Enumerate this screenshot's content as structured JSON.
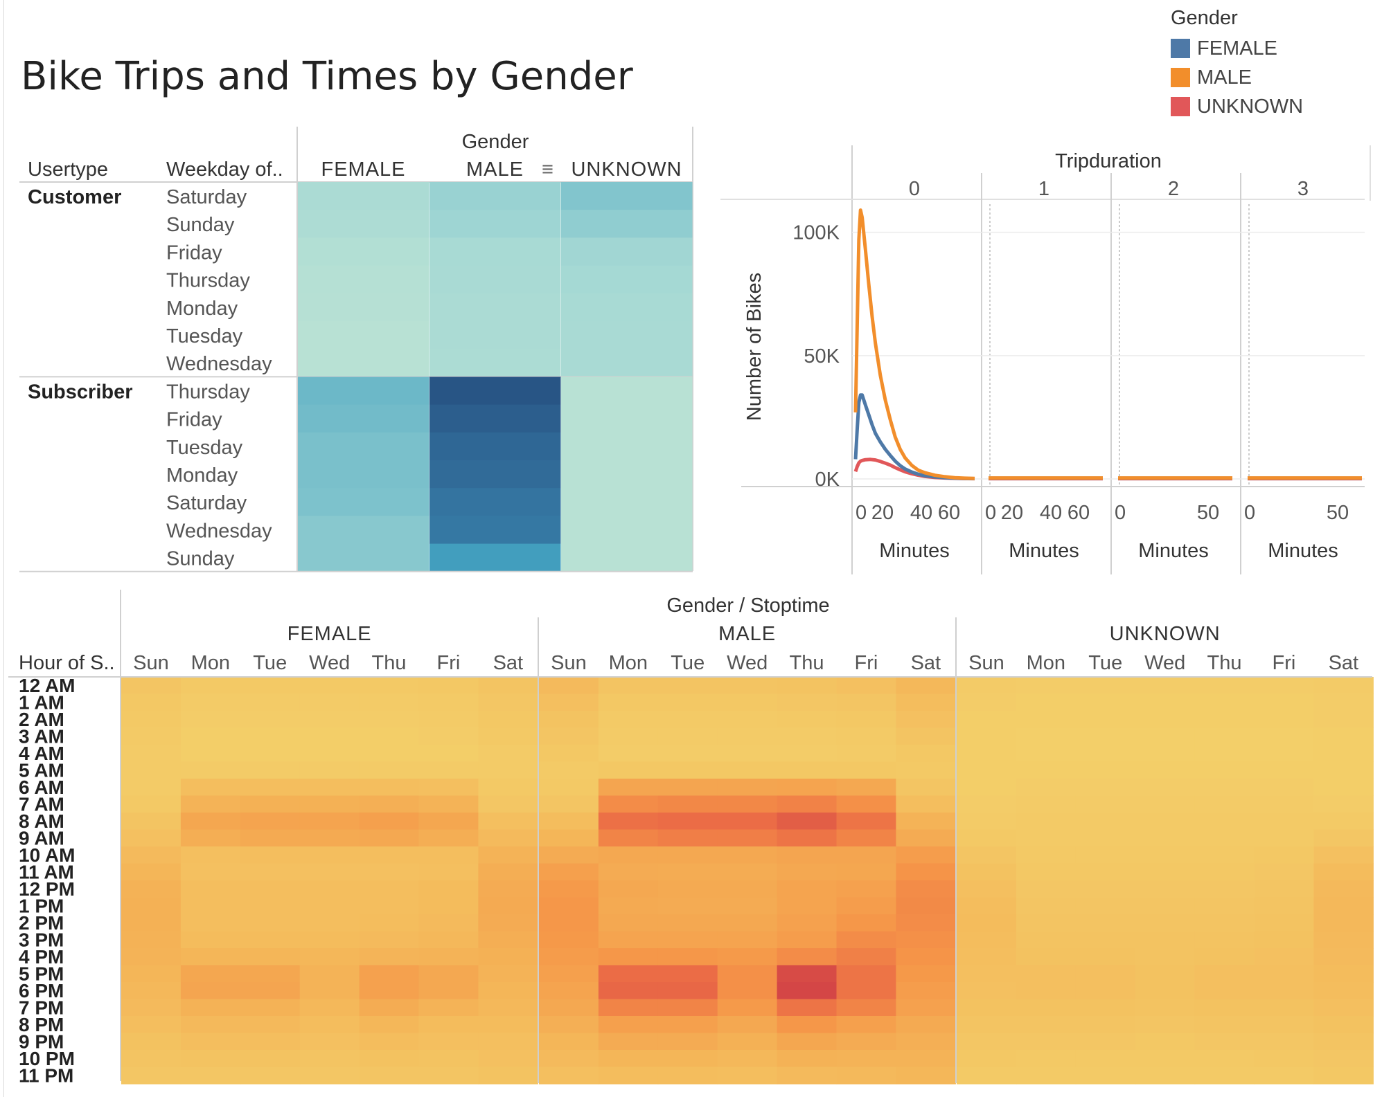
{
  "title": "Bike Trips and Times by Gender",
  "legend": {
    "title": "Gender",
    "items": [
      {
        "label": "FEMALE",
        "color": "#4e79a7"
      },
      {
        "label": "MALE",
        "color": "#f28e2b"
      },
      {
        "label": "UNKNOWN",
        "color": "#e15759"
      }
    ]
  },
  "chart_data": [
    {
      "type": "heatmap",
      "column_header": "Gender",
      "row_headers": [
        "Usertype",
        "Weekday of.."
      ],
      "columns": [
        "FEMALE",
        "MALE",
        "UNKNOWN"
      ],
      "groups": [
        {
          "name": "Customer",
          "days": [
            "Saturday",
            "Sunday",
            "Friday",
            "Thursday",
            "Monday",
            "Tuesday",
            "Wednesday"
          ],
          "values": [
            [
              0.15,
              0.24,
              0.32
            ],
            [
              0.13,
              0.22,
              0.27
            ],
            [
              0.09,
              0.17,
              0.21
            ],
            [
              0.07,
              0.16,
              0.19
            ],
            [
              0.06,
              0.15,
              0.17
            ],
            [
              0.05,
              0.15,
              0.16
            ],
            [
              0.05,
              0.14,
              0.16
            ]
          ]
        },
        {
          "name": "Subscriber",
          "days": [
            "Thursday",
            "Friday",
            "Tuesday",
            "Monday",
            "Saturday",
            "Wednesday",
            "Sunday"
          ],
          "values": [
            [
              0.4,
              0.97,
              0.05
            ],
            [
              0.38,
              0.92,
              0.05
            ],
            [
              0.35,
              0.87,
              0.05
            ],
            [
              0.35,
              0.85,
              0.05
            ],
            [
              0.34,
              0.8,
              0.05
            ],
            [
              0.3,
              0.78,
              0.05
            ],
            [
              0.3,
              0.6,
              0.05
            ]
          ]
        }
      ]
    },
    {
      "type": "line",
      "column_header": "Tripduration",
      "panels": [
        "0",
        "1",
        "2",
        "3"
      ],
      "ylabel": "Number of Bikes",
      "xlabel": "Minutes",
      "ylim": [
        0,
        110000
      ],
      "yticks": [
        "100K",
        "50K",
        "0K"
      ],
      "ytick_values": [
        100000,
        50000,
        0
      ],
      "xticks": [
        [
          "0",
          "20",
          "40",
          "60"
        ],
        [
          "0",
          "20",
          "40",
          "60"
        ],
        [
          "0",
          "50"
        ],
        [
          "0",
          "50"
        ]
      ],
      "series": [
        {
          "name": "MALE",
          "panel0": [
            [
              0,
              27000
            ],
            [
              1,
              62000
            ],
            [
              2,
              97000
            ],
            [
              3,
              109000
            ],
            [
              4,
              106000
            ],
            [
              6,
              93000
            ],
            [
              8,
              79000
            ],
            [
              10,
              66000
            ],
            [
              12,
              55000
            ],
            [
              15,
              42000
            ],
            [
              18,
              32000
            ],
            [
              21,
              24000
            ],
            [
              24,
              17000
            ],
            [
              27,
              12000
            ],
            [
              30,
              8500
            ],
            [
              34,
              5500
            ],
            [
              38,
              3500
            ],
            [
              42,
              2500
            ],
            [
              48,
              1500
            ],
            [
              54,
              900
            ],
            [
              60,
              500
            ],
            [
              66,
              300
            ],
            [
              72,
              200
            ]
          ],
          "flat": 400
        },
        {
          "name": "FEMALE",
          "panel0": [
            [
              0,
              8000
            ],
            [
              1,
              20000
            ],
            [
              2,
              31000
            ],
            [
              3,
              34000
            ],
            [
              4,
              34000
            ],
            [
              6,
              30000
            ],
            [
              8,
              26000
            ],
            [
              10,
              22000
            ],
            [
              12,
              18500
            ],
            [
              15,
              15000
            ],
            [
              18,
              12000
            ],
            [
              21,
              9500
            ],
            [
              24,
              7200
            ],
            [
              27,
              5400
            ],
            [
              30,
              4000
            ],
            [
              34,
              2800
            ],
            [
              38,
              1900
            ],
            [
              42,
              1300
            ],
            [
              48,
              800
            ],
            [
              54,
              500
            ],
            [
              60,
              300
            ],
            [
              66,
              200
            ],
            [
              72,
              150
            ]
          ],
          "flat": 300
        },
        {
          "name": "UNKNOWN",
          "panel0": [
            [
              0,
              3000
            ],
            [
              1,
              5000
            ],
            [
              2,
              6500
            ],
            [
              3,
              7200
            ],
            [
              4,
              7500
            ],
            [
              6,
              7800
            ],
            [
              9,
              7900
            ],
            [
              12,
              7700
            ],
            [
              15,
              7100
            ],
            [
              18,
              6400
            ],
            [
              21,
              5600
            ],
            [
              24,
              4600
            ],
            [
              27,
              3700
            ],
            [
              30,
              2900
            ],
            [
              34,
              2100
            ],
            [
              38,
              1500
            ],
            [
              42,
              1000
            ],
            [
              48,
              600
            ],
            [
              54,
              400
            ],
            [
              60,
              250
            ],
            [
              66,
              150
            ],
            [
              72,
              100
            ]
          ],
          "flat": 100
        }
      ]
    },
    {
      "type": "heatmap",
      "column_header": "Gender / Stoptime",
      "row_header": "Hour of S..",
      "genders": [
        "FEMALE",
        "MALE",
        "UNKNOWN"
      ],
      "days": [
        "Sun",
        "Mon",
        "Tue",
        "Wed",
        "Thu",
        "Fri",
        "Sat"
      ],
      "hours": [
        "12 AM",
        "1 AM",
        "2 AM",
        "3 AM",
        "4 AM",
        "5 AM",
        "6 AM",
        "7 AM",
        "8 AM",
        "9 AM",
        "10 AM",
        "11 AM",
        "12 PM",
        "1 PM",
        "2 PM",
        "3 PM",
        "4 PM",
        "5 PM",
        "6 PM",
        "7 PM",
        "8 PM",
        "9 PM",
        "10 PM",
        "11 PM"
      ],
      "values": {
        "FEMALE": [
          [
            0.09,
            0.06,
            0.06,
            0.06,
            0.06,
            0.07,
            0.1
          ],
          [
            0.07,
            0.04,
            0.04,
            0.04,
            0.04,
            0.05,
            0.08
          ],
          [
            0.06,
            0.03,
            0.03,
            0.03,
            0.03,
            0.04,
            0.07
          ],
          [
            0.05,
            0.02,
            0.02,
            0.02,
            0.02,
            0.03,
            0.06
          ],
          [
            0.04,
            0.02,
            0.02,
            0.02,
            0.02,
            0.02,
            0.04
          ],
          [
            0.04,
            0.04,
            0.04,
            0.04,
            0.04,
            0.04,
            0.04
          ],
          [
            0.04,
            0.15,
            0.15,
            0.15,
            0.15,
            0.14,
            0.06
          ],
          [
            0.06,
            0.24,
            0.26,
            0.26,
            0.27,
            0.24,
            0.08
          ],
          [
            0.1,
            0.33,
            0.35,
            0.35,
            0.38,
            0.33,
            0.14
          ],
          [
            0.13,
            0.28,
            0.31,
            0.31,
            0.32,
            0.28,
            0.18
          ],
          [
            0.18,
            0.14,
            0.15,
            0.15,
            0.15,
            0.15,
            0.24
          ],
          [
            0.22,
            0.13,
            0.13,
            0.13,
            0.13,
            0.14,
            0.28
          ],
          [
            0.25,
            0.15,
            0.15,
            0.15,
            0.15,
            0.17,
            0.3
          ],
          [
            0.26,
            0.15,
            0.15,
            0.15,
            0.15,
            0.17,
            0.31
          ],
          [
            0.26,
            0.15,
            0.15,
            0.15,
            0.16,
            0.18,
            0.3
          ],
          [
            0.25,
            0.17,
            0.17,
            0.17,
            0.18,
            0.2,
            0.28
          ],
          [
            0.24,
            0.22,
            0.22,
            0.21,
            0.23,
            0.24,
            0.26
          ],
          [
            0.22,
            0.33,
            0.33,
            0.24,
            0.37,
            0.32,
            0.24
          ],
          [
            0.2,
            0.34,
            0.34,
            0.24,
            0.37,
            0.32,
            0.22
          ],
          [
            0.18,
            0.25,
            0.25,
            0.2,
            0.29,
            0.24,
            0.2
          ],
          [
            0.15,
            0.19,
            0.19,
            0.16,
            0.21,
            0.17,
            0.17
          ],
          [
            0.12,
            0.15,
            0.15,
            0.13,
            0.16,
            0.14,
            0.14
          ],
          [
            0.1,
            0.11,
            0.11,
            0.1,
            0.12,
            0.11,
            0.13
          ],
          [
            0.08,
            0.08,
            0.08,
            0.08,
            0.09,
            0.09,
            0.11
          ]
        ],
        "MALE": [
          [
            0.18,
            0.1,
            0.1,
            0.1,
            0.11,
            0.13,
            0.2
          ],
          [
            0.14,
            0.07,
            0.07,
            0.07,
            0.08,
            0.09,
            0.16
          ],
          [
            0.11,
            0.05,
            0.05,
            0.05,
            0.06,
            0.07,
            0.13
          ],
          [
            0.09,
            0.04,
            0.04,
            0.04,
            0.04,
            0.05,
            0.1
          ],
          [
            0.07,
            0.03,
            0.03,
            0.03,
            0.03,
            0.04,
            0.07
          ],
          [
            0.05,
            0.07,
            0.07,
            0.07,
            0.07,
            0.07,
            0.06
          ],
          [
            0.06,
            0.34,
            0.34,
            0.34,
            0.35,
            0.32,
            0.09
          ],
          [
            0.09,
            0.5,
            0.52,
            0.52,
            0.55,
            0.48,
            0.15
          ],
          [
            0.16,
            0.64,
            0.66,
            0.66,
            0.72,
            0.62,
            0.24
          ],
          [
            0.22,
            0.54,
            0.57,
            0.57,
            0.62,
            0.54,
            0.3
          ],
          [
            0.3,
            0.32,
            0.32,
            0.32,
            0.34,
            0.34,
            0.4
          ],
          [
            0.38,
            0.3,
            0.29,
            0.29,
            0.32,
            0.33,
            0.46
          ],
          [
            0.42,
            0.32,
            0.31,
            0.31,
            0.35,
            0.37,
            0.5
          ],
          [
            0.44,
            0.31,
            0.3,
            0.3,
            0.35,
            0.4,
            0.51
          ],
          [
            0.44,
            0.32,
            0.32,
            0.32,
            0.37,
            0.44,
            0.5
          ],
          [
            0.43,
            0.35,
            0.35,
            0.35,
            0.4,
            0.5,
            0.48
          ],
          [
            0.41,
            0.44,
            0.44,
            0.42,
            0.5,
            0.56,
            0.46
          ],
          [
            0.38,
            0.66,
            0.66,
            0.48,
            0.8,
            0.62,
            0.43
          ],
          [
            0.35,
            0.68,
            0.68,
            0.48,
            0.82,
            0.62,
            0.4
          ],
          [
            0.32,
            0.54,
            0.54,
            0.42,
            0.62,
            0.54,
            0.37
          ],
          [
            0.27,
            0.38,
            0.38,
            0.32,
            0.44,
            0.38,
            0.31
          ],
          [
            0.22,
            0.3,
            0.3,
            0.26,
            0.33,
            0.3,
            0.27
          ],
          [
            0.18,
            0.22,
            0.22,
            0.2,
            0.25,
            0.24,
            0.24
          ],
          [
            0.14,
            0.16,
            0.16,
            0.15,
            0.18,
            0.19,
            0.21
          ]
        ],
        "UNKNOWN": [
          [
            0.04,
            0.03,
            0.03,
            0.03,
            0.03,
            0.03,
            0.04
          ],
          [
            0.03,
            0.02,
            0.02,
            0.02,
            0.02,
            0.02,
            0.03
          ],
          [
            0.02,
            0.02,
            0.02,
            0.02,
            0.02,
            0.02,
            0.03
          ],
          [
            0.02,
            0.01,
            0.01,
            0.01,
            0.01,
            0.01,
            0.02
          ],
          [
            0.02,
            0.01,
            0.01,
            0.01,
            0.01,
            0.01,
            0.02
          ],
          [
            0.02,
            0.02,
            0.02,
            0.02,
            0.02,
            0.02,
            0.02
          ],
          [
            0.02,
            0.03,
            0.03,
            0.03,
            0.03,
            0.03,
            0.02
          ],
          [
            0.03,
            0.04,
            0.04,
            0.04,
            0.04,
            0.04,
            0.03
          ],
          [
            0.04,
            0.05,
            0.05,
            0.05,
            0.05,
            0.05,
            0.05
          ],
          [
            0.06,
            0.05,
            0.05,
            0.05,
            0.05,
            0.05,
            0.08
          ],
          [
            0.09,
            0.06,
            0.06,
            0.06,
            0.06,
            0.07,
            0.13
          ],
          [
            0.12,
            0.07,
            0.07,
            0.07,
            0.07,
            0.08,
            0.17
          ],
          [
            0.14,
            0.08,
            0.08,
            0.08,
            0.08,
            0.09,
            0.19
          ],
          [
            0.16,
            0.09,
            0.09,
            0.09,
            0.09,
            0.1,
            0.2
          ],
          [
            0.17,
            0.1,
            0.1,
            0.1,
            0.1,
            0.11,
            0.2
          ],
          [
            0.16,
            0.11,
            0.11,
            0.11,
            0.11,
            0.12,
            0.19
          ],
          [
            0.15,
            0.12,
            0.12,
            0.11,
            0.12,
            0.13,
            0.18
          ],
          [
            0.14,
            0.14,
            0.14,
            0.12,
            0.14,
            0.14,
            0.17
          ],
          [
            0.13,
            0.14,
            0.14,
            0.12,
            0.14,
            0.14,
            0.16
          ],
          [
            0.12,
            0.12,
            0.12,
            0.11,
            0.12,
            0.12,
            0.14
          ],
          [
            0.1,
            0.1,
            0.1,
            0.09,
            0.1,
            0.1,
            0.12
          ],
          [
            0.08,
            0.08,
            0.08,
            0.07,
            0.08,
            0.08,
            0.1
          ],
          [
            0.07,
            0.06,
            0.06,
            0.06,
            0.06,
            0.07,
            0.08
          ],
          [
            0.05,
            0.05,
            0.05,
            0.05,
            0.05,
            0.05,
            0.07
          ]
        ]
      }
    }
  ]
}
